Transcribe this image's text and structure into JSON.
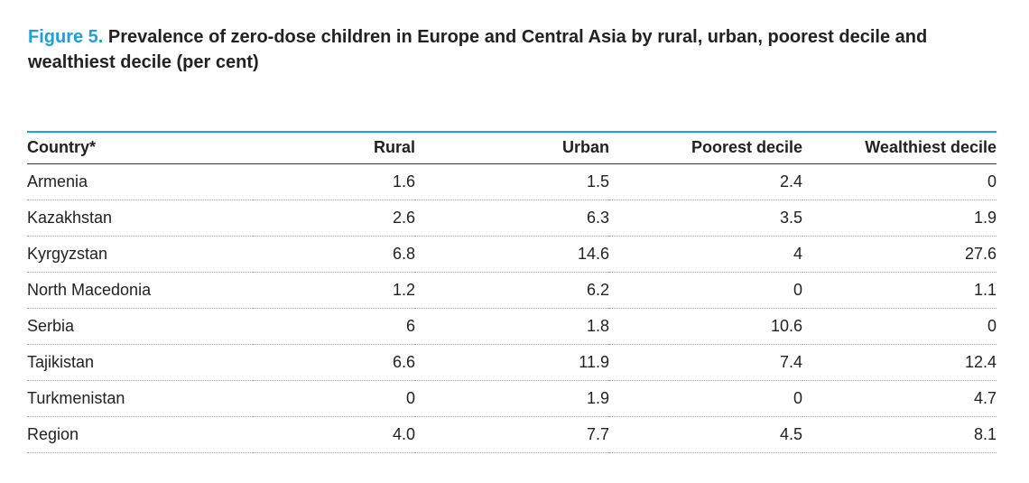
{
  "title": {
    "label": "Figure 5.",
    "text": "Prevalence of zero-dose children in Europe and Central Asia by rural, urban, poorest decile and wealthiest decile (per cent)"
  },
  "table": {
    "header": [
      "Country*",
      "Rural",
      "Urban",
      "Poorest decile",
      "Wealthiest decile"
    ],
    "rows": [
      [
        "Armenia",
        "1.6",
        "1.5",
        "2.4",
        "0"
      ],
      [
        "Kazakhstan",
        "2.6",
        "6.3",
        "3.5",
        "1.9"
      ],
      [
        "Kyrgyzstan",
        "6.8",
        "14.6",
        "4",
        "27.6"
      ],
      [
        "North Macedonia",
        "1.2",
        "6.2",
        "0",
        "1.1"
      ],
      [
        "Serbia",
        "6",
        "1.8",
        "10.6",
        "0"
      ],
      [
        "Tajikistan",
        "6.6",
        "11.9",
        "7.4",
        "12.4"
      ],
      [
        "Turkmenistan",
        "0",
        "1.9",
        "0",
        "4.7"
      ],
      [
        "Region",
        "4.0",
        "7.7",
        "4.5",
        "8.1"
      ]
    ]
  }
}
